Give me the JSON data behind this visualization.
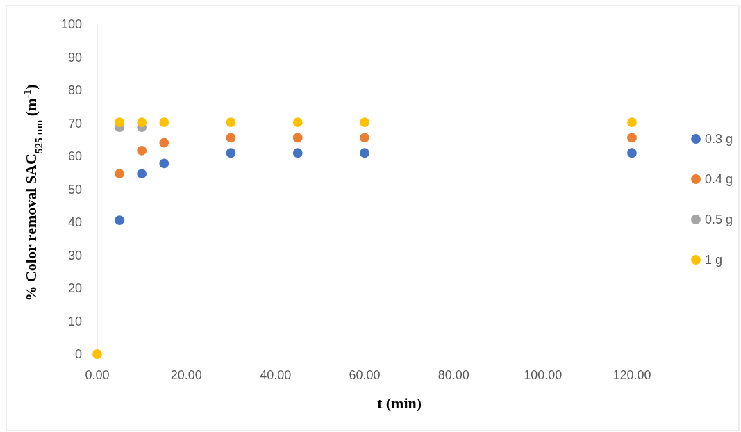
{
  "chart_data": {
    "type": "scatter",
    "xlabel": "t (min)",
    "ylabel": "% Color removal SAC$_{525 nm}$ (m$^{-1}$)",
    "x": [
      0,
      5,
      10,
      15,
      30,
      45,
      60,
      120
    ],
    "xlim": [
      0,
      120
    ],
    "xticks": [
      {
        "value": 0,
        "label": "0.00"
      },
      {
        "value": 20,
        "label": "20.00"
      },
      {
        "value": 40,
        "label": "40.00"
      },
      {
        "value": 60,
        "label": "60.00"
      },
      {
        "value": 80,
        "label": "80.00"
      },
      {
        "value": 100,
        "label": "100.00"
      },
      {
        "value": 120,
        "label": "120.00"
      }
    ],
    "ylim": [
      0,
      100
    ],
    "yticks": [
      0,
      10,
      20,
      30,
      40,
      50,
      60,
      70,
      80,
      90,
      100
    ],
    "grid": false,
    "legend": "right",
    "marker": "circle",
    "series": [
      {
        "name": "0.3 g",
        "color": "#4472c4",
        "values": [
          null,
          40.6,
          54.7,
          57.8,
          61,
          61,
          61,
          61
        ]
      },
      {
        "name": "0.4 g",
        "color": "#ed7d31",
        "values": [
          null,
          54.7,
          61.7,
          64.1,
          65.6,
          65.6,
          65.6,
          65.6
        ]
      },
      {
        "name": "0.5 g",
        "color": "#a5a5a5",
        "values": [
          null,
          68.8,
          68.8,
          null,
          null,
          null,
          null,
          null
        ]
      },
      {
        "name": "1 g",
        "color": "#ffc000",
        "values": [
          0,
          70.3,
          70.3,
          70.3,
          70.3,
          70.3,
          70.3,
          70.3
        ]
      }
    ]
  }
}
